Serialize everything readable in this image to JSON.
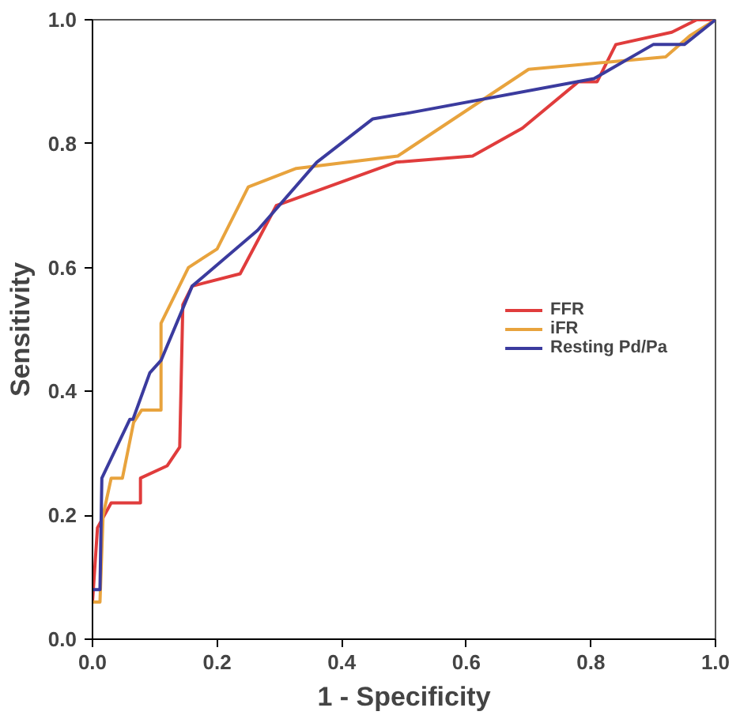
{
  "chart_data": {
    "type": "line",
    "xlabel": "1 - Specificity",
    "ylabel": "Sensitivity",
    "xlim": [
      0,
      1
    ],
    "ylim": [
      0,
      1
    ],
    "xticks": [
      {
        "value": 0,
        "label": "0.0"
      },
      0.2,
      0.4,
      0.6,
      0.8,
      {
        "value": 1,
        "label": "1.0"
      }
    ],
    "yticks": [
      {
        "value": 0,
        "label": "0.0"
      },
      0.2,
      0.4,
      0.6,
      0.8,
      {
        "value": 1,
        "label": "1.0"
      }
    ],
    "grid": false,
    "legend": "right",
    "line_style": "solid",
    "marker": "none",
    "series": [
      {
        "name": "FFR",
        "color": "#e03c3c",
        "x": [
          0,
          0.008,
          0.03,
          0.077,
          0.077,
          0.12,
          0.14,
          0.145,
          0.16,
          0.237,
          0.295,
          0.487,
          0.61,
          0.69,
          0.78,
          0.81,
          0.84,
          0.93,
          0.97,
          1
        ],
        "values": [
          0.06,
          0.18,
          0.22,
          0.22,
          0.26,
          0.28,
          0.31,
          0.54,
          0.57,
          0.59,
          0.7,
          0.77,
          0.78,
          0.825,
          0.9,
          0.9,
          0.96,
          0.98,
          1,
          1
        ]
      },
      {
        "name": "iFR",
        "color": "#e8a33d",
        "x": [
          0,
          0.012,
          0.017,
          0.03,
          0.048,
          0.066,
          0.079,
          0.11,
          0.11,
          0.154,
          0.2,
          0.25,
          0.327,
          0.49,
          0.7,
          0.92,
          0.96,
          1
        ],
        "values": [
          0.06,
          0.06,
          0.2,
          0.26,
          0.26,
          0.35,
          0.37,
          0.37,
          0.51,
          0.6,
          0.63,
          0.73,
          0.76,
          0.78,
          0.92,
          0.94,
          0.975,
          1
        ]
      },
      {
        "name": "Resting Pd/Pa",
        "color": "#3b3b9e",
        "x": [
          0,
          0.012,
          0.015,
          0.06,
          0.065,
          0.092,
          0.11,
          0.16,
          0.265,
          0.36,
          0.45,
          0.51,
          0.805,
          0.9,
          0.95,
          1
        ],
        "values": [
          0.08,
          0.08,
          0.26,
          0.355,
          0.355,
          0.43,
          0.45,
          0.57,
          0.66,
          0.77,
          0.84,
          0.85,
          0.905,
          0.96,
          0.96,
          1
        ]
      }
    ]
  }
}
